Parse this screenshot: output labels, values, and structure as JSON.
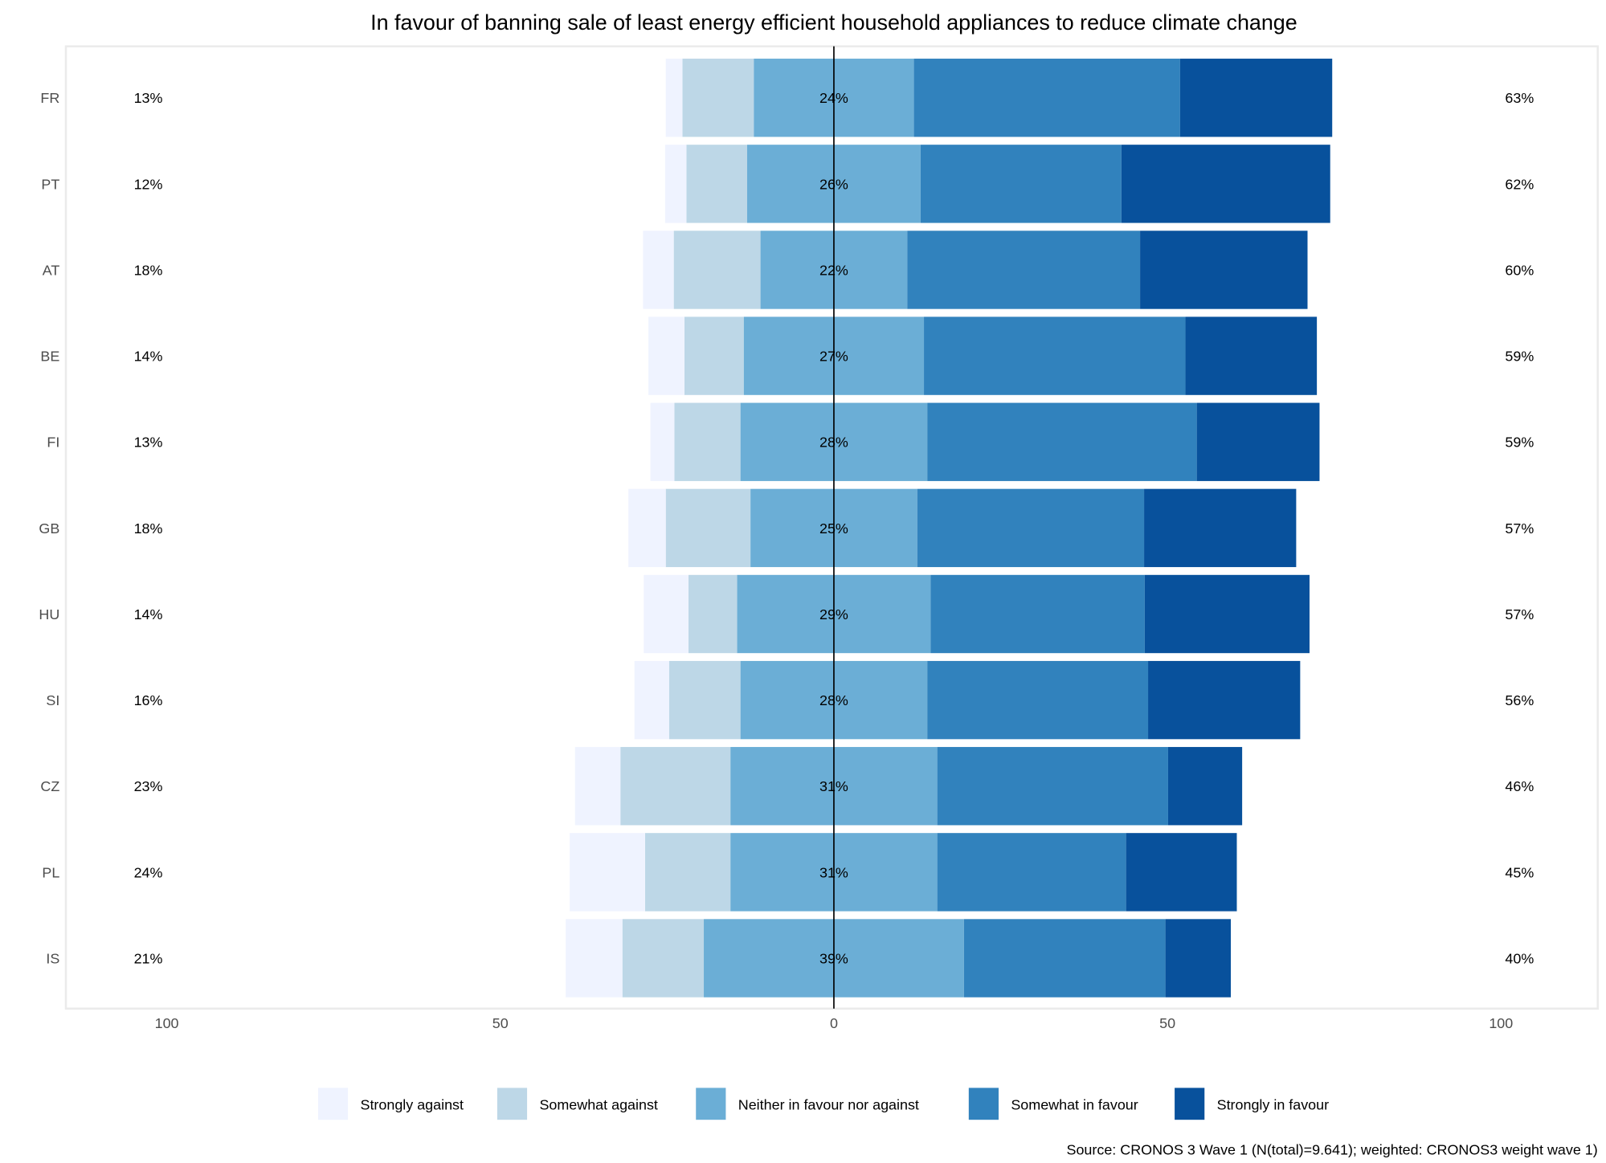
{
  "chart_data": {
    "type": "bar",
    "orientation": "horizontal-diverging",
    "title": "In favour of banning sale of least energy efficient household appliances to reduce climate change",
    "source": "Source: CRONOS 3 Wave 1 (N(total)=9.641); weighted: CRONOS3 weight wave 1)",
    "xlim": [
      -100,
      100
    ],
    "x_ticks": [
      -100,
      -50,
      0,
      50,
      100
    ],
    "x_tick_labels": [
      "100",
      "50",
      "0",
      "50",
      "100"
    ],
    "legend_position": "bottom",
    "categories": [
      "FR",
      "PT",
      "AT",
      "BE",
      "FI",
      "GB",
      "HU",
      "SI",
      "CZ",
      "PL",
      "IS"
    ],
    "series": [
      {
        "name": "Strongly against",
        "color": "#eff3ff",
        "values": [
          2.5,
          3.2,
          4.6,
          5.4,
          3.6,
          5.6,
          6.7,
          5.2,
          6.8,
          11.3,
          8.5
        ]
      },
      {
        "name": "Somewhat against",
        "color": "#bdd7e7",
        "values": [
          10.7,
          9.1,
          13.0,
          8.9,
          9.9,
          12.7,
          7.3,
          10.7,
          16.5,
          12.8,
          12.2
        ]
      },
      {
        "name": "Neither in favour nor against",
        "color": "#6baed6",
        "values": [
          24,
          26,
          22,
          27,
          28,
          25,
          29,
          28,
          31,
          31,
          39
        ]
      },
      {
        "name": "Somewhat in favour",
        "color": "#3182bd",
        "values": [
          39.9,
          30.1,
          34.9,
          39.2,
          40.4,
          34.0,
          32.1,
          33.1,
          34.6,
          28.3,
          30.2
        ]
      },
      {
        "name": "Strongly in favour",
        "color": "#08519c",
        "values": [
          22.8,
          31.3,
          25.1,
          19.7,
          18.4,
          22.8,
          24.7,
          22.8,
          11.1,
          16.6,
          9.8
        ]
      }
    ],
    "labels_against": [
      "13%",
      "12%",
      "18%",
      "14%",
      "13%",
      "18%",
      "14%",
      "16%",
      "23%",
      "24%",
      "21%"
    ],
    "labels_neutral": [
      "24%",
      "26%",
      "22%",
      "27%",
      "28%",
      "25%",
      "29%",
      "28%",
      "31%",
      "31%",
      "39%"
    ],
    "labels_favour": [
      "63%",
      "62%",
      "60%",
      "59%",
      "59%",
      "57%",
      "57%",
      "56%",
      "46%",
      "45%",
      "40%"
    ]
  }
}
